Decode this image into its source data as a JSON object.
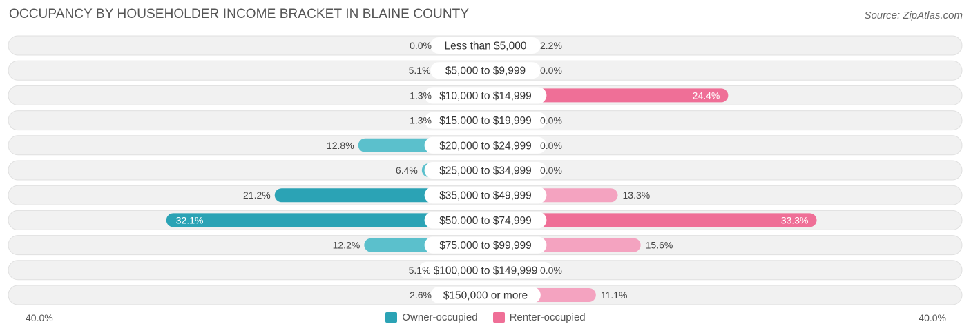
{
  "title": "OCCUPANCY BY HOUSEHOLDER INCOME BRACKET IN BLAINE COUNTY",
  "source": "Source: ZipAtlas.com",
  "axis": {
    "left_label": "40.0%",
    "right_label": "40.0%"
  },
  "colors": {
    "owner": "#5bc0cc",
    "owner_strong": "#2ba3b5",
    "renter": "#f4a3c0",
    "renter_strong": "#ef6f97",
    "row_bg": "#f1f1f1",
    "row_border": "#e0e0e0"
  },
  "legend": {
    "owner_label": "Owner-occupied",
    "renter_label": "Renter-occupied"
  },
  "chart_data": {
    "type": "bar",
    "orientation": "diverging-horizontal",
    "title": "OCCUPANCY BY HOUSEHOLDER INCOME BRACKET IN BLAINE COUNTY",
    "xlim": [
      -40,
      40
    ],
    "categories": [
      "Less than $5,000",
      "$5,000 to $9,999",
      "$10,000 to $14,999",
      "$15,000 to $19,999",
      "$20,000 to $24,999",
      "$25,000 to $34,999",
      "$35,000 to $49,999",
      "$50,000 to $74,999",
      "$75,000 to $99,999",
      "$100,000 to $149,999",
      "$150,000 or more"
    ],
    "series": [
      {
        "name": "Owner-occupied",
        "values": [
          0.0,
          5.1,
          1.3,
          1.3,
          12.8,
          6.4,
          21.2,
          32.1,
          12.2,
          5.1,
          2.6
        ],
        "labels": [
          "0.0%",
          "5.1%",
          "1.3%",
          "1.3%",
          "12.8%",
          "6.4%",
          "21.2%",
          "32.1%",
          "12.2%",
          "5.1%",
          "2.6%"
        ]
      },
      {
        "name": "Renter-occupied",
        "values": [
          2.2,
          0.0,
          24.4,
          0.0,
          0.0,
          0.0,
          13.3,
          33.3,
          15.6,
          0.0,
          11.1
        ],
        "labels": [
          "2.2%",
          "0.0%",
          "24.4%",
          "0.0%",
          "0.0%",
          "0.0%",
          "13.3%",
          "33.3%",
          "15.6%",
          "0.0%",
          "11.1%"
        ]
      }
    ],
    "legend_position": "bottom-center"
  }
}
